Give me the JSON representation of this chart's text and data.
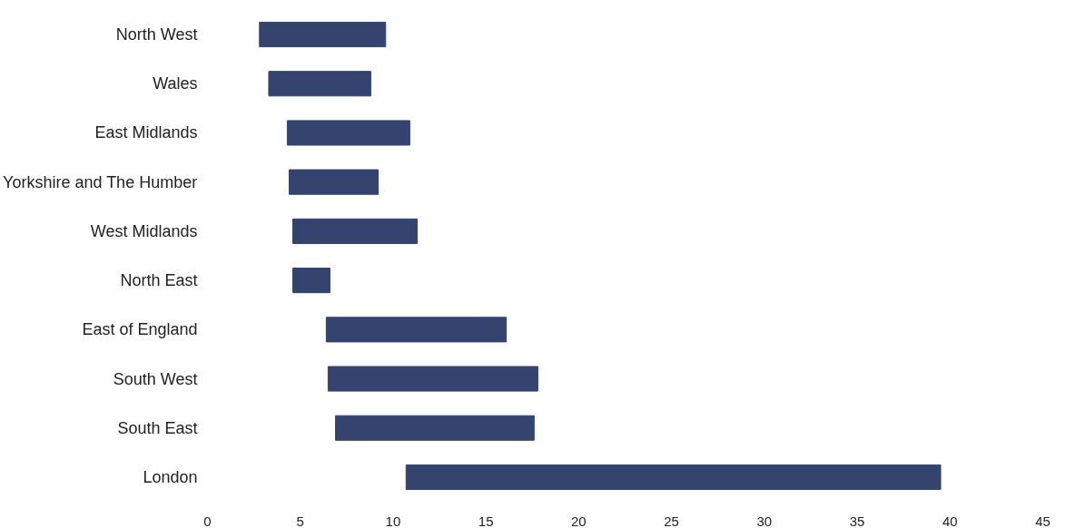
{
  "chart_data": {
    "type": "bar",
    "orientation": "horizontal",
    "categories": [
      "North West",
      "Wales",
      "East Midlands",
      "Yorkshire and The Humber",
      "West Midlands",
      "North East",
      "East of England",
      "South West",
      "South East",
      "London"
    ],
    "base": [
      2.8,
      3.3,
      4.3,
      4.4,
      4.6,
      4.6,
      6.4,
      6.5,
      6.9,
      10.7
    ],
    "values": [
      6.8,
      5.5,
      6.6,
      4.8,
      6.7,
      2.0,
      9.7,
      11.3,
      10.7,
      28.8
    ],
    "color": "#34446e",
    "xlim": [
      0,
      45
    ],
    "xticks": [
      0,
      5,
      10,
      15,
      20,
      25,
      30,
      35,
      40,
      45
    ],
    "grid": false
  }
}
